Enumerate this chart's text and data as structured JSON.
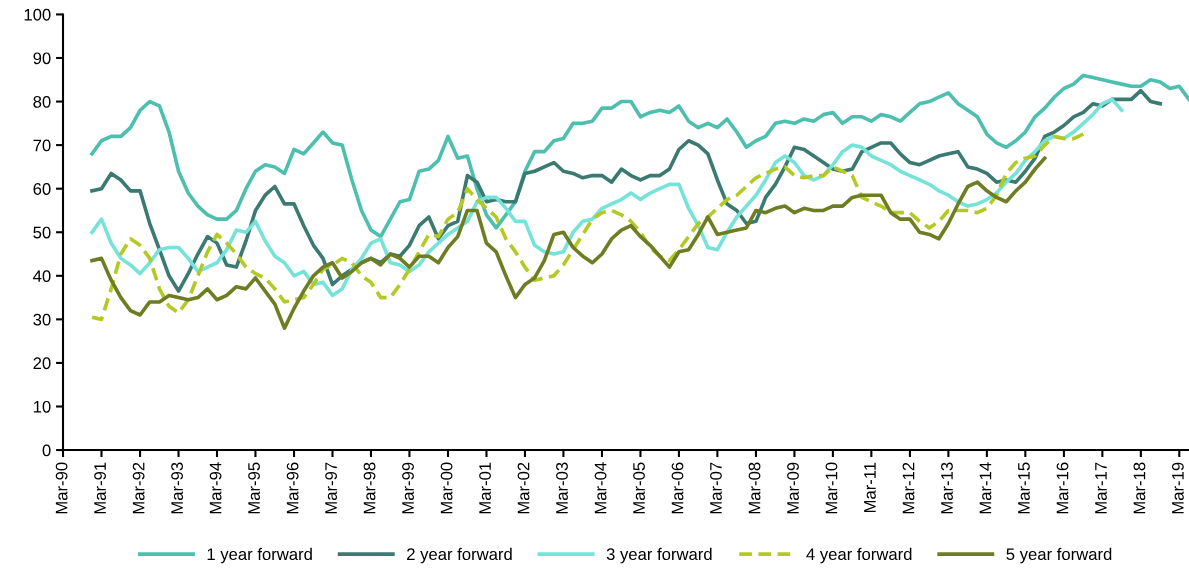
{
  "chart_data": {
    "type": "line",
    "x": [
      "1990-12",
      "1991-03",
      "1991-06",
      "1991-09",
      "1991-12",
      "1992-03",
      "1992-06",
      "1992-09",
      "1992-12",
      "1993-03",
      "1993-06",
      "1993-09",
      "1993-12",
      "1994-03",
      "1994-06",
      "1994-09",
      "1994-12",
      "1995-03",
      "1995-06",
      "1995-09",
      "1995-12",
      "1996-03",
      "1996-06",
      "1996-09",
      "1996-12",
      "1997-03",
      "1997-06",
      "1997-09",
      "1997-12",
      "1998-03",
      "1998-06",
      "1998-09",
      "1998-12",
      "1999-03",
      "1999-06",
      "1999-09",
      "1999-12",
      "2000-03",
      "2000-06",
      "2000-09",
      "2000-12",
      "2001-03",
      "2001-06",
      "2001-09",
      "2001-12",
      "2002-03",
      "2002-06",
      "2002-09",
      "2002-12",
      "2003-03",
      "2003-06",
      "2003-09",
      "2003-12",
      "2004-03",
      "2004-06",
      "2004-09",
      "2004-12",
      "2005-03",
      "2005-06",
      "2005-09",
      "2005-12",
      "2006-03",
      "2006-06",
      "2006-09",
      "2006-12",
      "2007-03",
      "2007-06",
      "2007-09",
      "2007-12",
      "2008-03",
      "2008-06",
      "2008-09",
      "2008-12",
      "2009-03",
      "2009-06",
      "2009-09",
      "2009-12",
      "2010-03",
      "2010-06",
      "2010-09",
      "2010-12",
      "2011-03",
      "2011-06",
      "2011-09",
      "2011-12",
      "2012-03",
      "2012-06",
      "2012-09",
      "2012-12",
      "2013-03",
      "2013-06",
      "2013-09",
      "2013-12",
      "2014-03",
      "2014-06",
      "2014-09",
      "2014-12",
      "2015-03",
      "2015-06",
      "2015-09",
      "2015-12",
      "2016-03",
      "2016-06",
      "2016-09",
      "2016-12",
      "2017-03",
      "2017-06",
      "2017-09",
      "2017-12",
      "2018-03",
      "2018-06",
      "2018-09",
      "2018-12",
      "2019-03",
      "2019-06"
    ],
    "series": [
      {
        "name": "1 year forward",
        "color": "#4dbfae",
        "values": [
          68,
          71,
          72,
          72,
          74,
          78,
          80,
          79,
          73,
          64,
          59,
          56,
          54,
          53,
          53,
          55,
          60,
          64,
          65.5,
          65,
          63.5,
          69,
          68,
          70.5,
          73,
          70.5,
          70,
          62,
          55,
          50.5,
          49,
          53,
          57,
          57.5,
          64,
          64.5,
          66.5,
          72,
          67,
          67.5,
          60,
          54,
          51,
          54,
          57,
          64,
          68.5,
          68.5,
          71,
          71.5,
          75,
          75,
          75.5,
          78.5,
          78.5,
          80,
          80,
          76.5,
          77.5,
          78,
          77.5,
          79,
          75.5,
          74,
          75,
          74,
          76,
          73,
          69.5,
          71,
          72,
          75,
          75.5,
          75,
          76,
          75.5,
          77,
          77.5,
          75,
          76.5,
          76.5,
          75.5,
          77,
          76.5,
          75.5,
          77.5,
          79.5,
          80,
          81,
          82,
          79.5,
          78,
          76.5,
          72.5,
          70.5,
          69.5,
          71,
          73,
          76.5,
          78.5,
          81,
          83,
          84,
          86,
          85.5,
          85,
          84.5,
          84,
          83.5,
          83.5,
          85,
          84.5,
          83,
          83.5,
          80.5
        ]
      },
      {
        "name": "2 year forward",
        "color": "#3b7a70",
        "values": [
          59.5,
          60,
          63.5,
          62,
          59.5,
          59.5,
          52,
          46,
          40,
          36.5,
          40.5,
          45,
          49,
          47.5,
          42.5,
          42,
          48,
          55,
          58.5,
          60.5,
          56.5,
          56.5,
          51.5,
          47,
          44,
          38,
          40,
          41.5,
          43,
          44,
          43,
          45,
          44.5,
          47,
          51.5,
          53.5,
          48.5,
          51.5,
          52.5,
          63,
          61.5,
          57,
          57.5,
          57,
          57,
          63.5,
          64,
          65,
          66,
          64,
          63.5,
          62.5,
          63,
          63,
          61.5,
          64.5,
          63,
          62,
          63,
          63,
          64.5,
          69,
          71,
          70,
          68,
          62,
          56.5,
          55,
          52,
          52.5,
          58,
          61,
          65,
          69.5,
          69,
          67.5,
          66,
          64.5,
          64,
          64.5,
          68.5,
          69.5,
          70.5,
          70.5,
          68,
          66,
          65.5,
          66.5,
          67.5,
          68,
          68.5,
          65,
          64.5,
          63.5,
          61.5,
          62,
          61.5,
          64,
          67,
          72,
          73,
          74.5,
          76.5,
          77.5,
          79.5,
          79,
          80.5,
          80.5,
          80.5,
          82.5,
          80,
          79.5,
          null,
          null,
          null
        ]
      },
      {
        "name": "3 year forward",
        "color": "#75e3d8",
        "values": [
          50,
          53,
          47.5,
          44,
          42.5,
          40.5,
          43,
          46,
          46.5,
          46.5,
          44,
          41,
          42,
          43,
          46,
          50.5,
          50,
          52.5,
          48,
          44.5,
          43,
          40,
          41,
          38,
          38.5,
          35.5,
          37,
          41.5,
          44,
          47.5,
          48.5,
          43,
          42.5,
          41,
          42.5,
          45.5,
          47.5,
          49.5,
          51,
          52.5,
          57,
          58,
          58,
          55.5,
          52.5,
          52.5,
          47,
          45.5,
          45,
          45.5,
          50,
          52.5,
          53,
          55.5,
          56.5,
          57.5,
          59,
          57.5,
          59,
          60,
          61,
          61,
          55.5,
          51.5,
          46.5,
          46,
          50,
          53.5,
          56,
          58.5,
          62,
          66,
          67.5,
          66,
          63,
          62,
          63,
          65.5,
          68.5,
          70,
          69.5,
          67.5,
          66.5,
          65.5,
          64,
          63,
          62,
          61,
          59.5,
          58.5,
          57,
          56,
          56.5,
          57.5,
          59,
          61.5,
          63.5,
          66.5,
          68.5,
          71,
          72,
          71.5,
          73,
          75,
          77,
          79.5,
          80.5,
          78,
          null,
          null,
          null,
          null,
          null,
          null,
          null
        ]
      },
      {
        "name": "4 year forward",
        "color": "#b5c924",
        "line_style": "dashed",
        "values": [
          30.5,
          30,
          37,
          45,
          48.5,
          47,
          44,
          37,
          33,
          31.5,
          34.5,
          40,
          45.5,
          49.5,
          47.5,
          45,
          42,
          40.5,
          39.5,
          37,
          34,
          34.5,
          35,
          38,
          41.5,
          42.5,
          44,
          43,
          40,
          38.5,
          35,
          35,
          38,
          41.5,
          45.5,
          49.5,
          49,
          53,
          54.5,
          60,
          57.5,
          55.5,
          53.5,
          48.5,
          45.5,
          42,
          39,
          39.5,
          40,
          42.5,
          46,
          49.5,
          53,
          54.5,
          55,
          54,
          52.5,
          50,
          46.5,
          44.5,
          43.5,
          46,
          49,
          52,
          53.5,
          55.5,
          57.5,
          58.5,
          60.5,
          62.5,
          63.5,
          64.5,
          65,
          63,
          62.5,
          63,
          63,
          65,
          64,
          63,
          58,
          57,
          56,
          54.5,
          54.5,
          54.5,
          52.5,
          51,
          52.5,
          55,
          55,
          55,
          54.5,
          55.5,
          58.5,
          63.5,
          66,
          67,
          67.5,
          70,
          72,
          71.5,
          71.5,
          72.5,
          null,
          null,
          null,
          null,
          null,
          null,
          null,
          null,
          null,
          null,
          null
        ]
      },
      {
        "name": "5 year forward",
        "color": "#6f7d22",
        "values": [
          43.5,
          44,
          39,
          35,
          32,
          31,
          34,
          34,
          35.5,
          35,
          34.5,
          35,
          37,
          34.5,
          35.5,
          37.5,
          37,
          39.5,
          36.5,
          33.5,
          28,
          32.5,
          36.5,
          40,
          42,
          43,
          39.5,
          41,
          43,
          44,
          42.5,
          45,
          44,
          42,
          44.5,
          44.5,
          43,
          46.5,
          49,
          55,
          55,
          47.5,
          45.5,
          40,
          35,
          38,
          39.5,
          43.5,
          49.5,
          50,
          46.5,
          44.5,
          43,
          45,
          48.5,
          50.5,
          51.5,
          49,
          47,
          44.5,
          42,
          45.5,
          46,
          49.5,
          53.5,
          49.5,
          50,
          50.5,
          51,
          55,
          54.5,
          55.5,
          56,
          54.5,
          55.5,
          55,
          55,
          56,
          56,
          58,
          58.5,
          58.5,
          58.5,
          54.5,
          53,
          53,
          50,
          49.5,
          48.5,
          52,
          56.5,
          60.5,
          61.5,
          59.5,
          58,
          57,
          59.5,
          61.5,
          64.5,
          67,
          null,
          null,
          null,
          null,
          null,
          null,
          null,
          null,
          null,
          null,
          null,
          null,
          null,
          null,
          null
        ]
      }
    ],
    "xlim": [
      "1990-03",
      "2019-06"
    ],
    "xticks": [
      {
        "value": "1990-03",
        "label": "Mar-90"
      },
      {
        "value": "1991-03",
        "label": "Mar-91"
      },
      {
        "value": "1992-03",
        "label": "Mar-92"
      },
      {
        "value": "1993-03",
        "label": "Mar-93"
      },
      {
        "value": "1994-03",
        "label": "Mar-94"
      },
      {
        "value": "1995-03",
        "label": "Mar-95"
      },
      {
        "value": "1996-03",
        "label": "Mar-96"
      },
      {
        "value": "1997-03",
        "label": "Mar-97"
      },
      {
        "value": "1998-03",
        "label": "Mar-98"
      },
      {
        "value": "1999-03",
        "label": "Mar-99"
      },
      {
        "value": "2000-03",
        "label": "Mar-00"
      },
      {
        "value": "2001-03",
        "label": "Mar-01"
      },
      {
        "value": "2002-03",
        "label": "Mar-02"
      },
      {
        "value": "2003-03",
        "label": "Mar-03"
      },
      {
        "value": "2004-03",
        "label": "Mar-04"
      },
      {
        "value": "2005-03",
        "label": "Mar-05"
      },
      {
        "value": "2006-03",
        "label": "Mar-06"
      },
      {
        "value": "2007-03",
        "label": "Mar-07"
      },
      {
        "value": "2008-03",
        "label": "Mar-08"
      },
      {
        "value": "2009-03",
        "label": "Mar-09"
      },
      {
        "value": "2010-03",
        "label": "Mar-10"
      },
      {
        "value": "2011-03",
        "label": "Mar-11"
      },
      {
        "value": "2012-03",
        "label": "Mar-12"
      },
      {
        "value": "2013-03",
        "label": "Mar-13"
      },
      {
        "value": "2014-03",
        "label": "Mar-14"
      },
      {
        "value": "2015-03",
        "label": "Mar-15"
      },
      {
        "value": "2016-03",
        "label": "Mar-16"
      },
      {
        "value": "2017-03",
        "label": "Mar-17"
      },
      {
        "value": "2018-03",
        "label": "Mar-18"
      },
      {
        "value": "2019-03",
        "label": "Mar-19"
      }
    ],
    "ylim": [
      0,
      100
    ],
    "yticks": [
      0,
      10,
      20,
      30,
      40,
      50,
      60,
      70,
      80,
      90,
      100
    ],
    "grid": false,
    "legend": "bottom",
    "marker": "none",
    "line_style": "solid"
  }
}
